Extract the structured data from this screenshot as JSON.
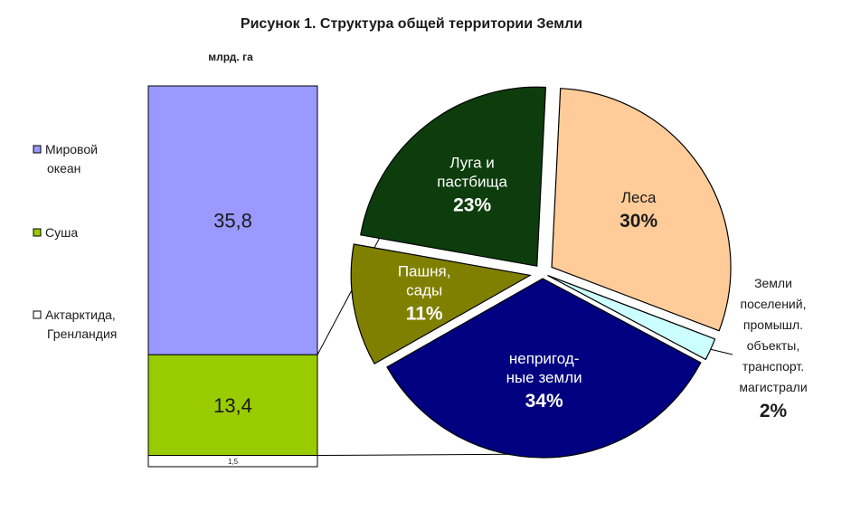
{
  "chart_data": [
    {
      "type": "bar",
      "title": "Рисунок 1. Структура общей территории Земли",
      "ylabel": "млрд. га",
      "stacked": true,
      "series": [
        {
          "name": "Мировой океан",
          "value": 35.8,
          "label": "35,8",
          "color": "#9999ff"
        },
        {
          "name": "Суша",
          "value": 13.4,
          "label": "13,4",
          "color": "#99cc00"
        },
        {
          "name": "Актарктида, Гренландия",
          "value": 1.5,
          "label": "1,5",
          "color": "#ffffff"
        }
      ],
      "legend": [
        {
          "lines": [
            "Мировой",
            "океан"
          ],
          "color": "#9999ff"
        },
        {
          "lines": [
            "Суша"
          ],
          "color": "#99cc00"
        },
        {
          "lines": [
            "Актарктида,",
            "Гренландия"
          ],
          "color": "#ffffff"
        }
      ]
    },
    {
      "type": "pie",
      "slices": [
        {
          "name": "Луга и пастбища",
          "lines": [
            "Луга и",
            "пастбища"
          ],
          "value": 23,
          "pct_label": "23%",
          "color": "#0d3d0d",
          "text_color": "#ffffff"
        },
        {
          "name": "Леса",
          "lines": [
            "Леса"
          ],
          "value": 30,
          "pct_label": "30%",
          "color": "#ffcc99",
          "text_color": "#1a1a1a"
        },
        {
          "name": "Земли поселений, промышл. объекты, транспорт. магистрали",
          "lines": [
            "Земли",
            "поселений,",
            "промышл.",
            "объекты,",
            "транспорт.",
            "магистрали"
          ],
          "value": 2,
          "pct_label": "2%",
          "color": "#ccffff",
          "text_color": "#1a1a1a"
        },
        {
          "name": "непригодные земли",
          "lines": [
            "непригод-",
            "ные земли"
          ],
          "value": 34,
          "pct_label": "34%",
          "color": "#000080",
          "text_color": "#ffffff"
        },
        {
          "name": "Пашня, сады",
          "lines": [
            "Пашня,",
            "сады"
          ],
          "value": 11,
          "pct_label": "11%",
          "color": "#808000",
          "text_color": "#ffffff"
        }
      ]
    }
  ]
}
